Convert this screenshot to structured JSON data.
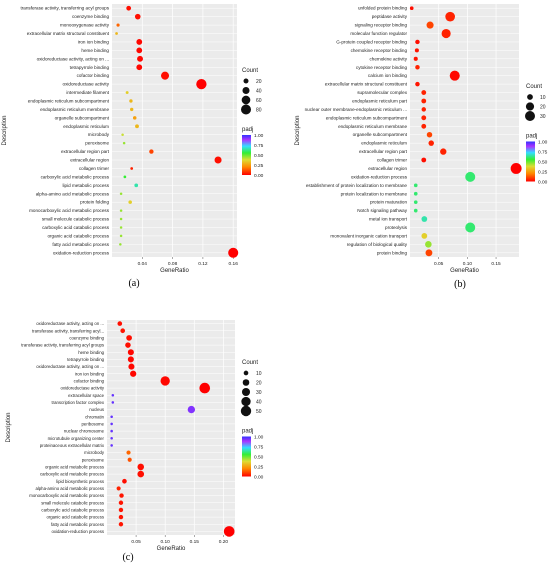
{
  "chart_data": [
    {
      "type": "scatter",
      "panel_label": "(a)",
      "xlabel": "GeneRatio",
      "ylabel": "Description",
      "xlim": [
        0.0,
        0.165
      ],
      "xticks": [
        0.04,
        0.08,
        0.12,
        0.16
      ],
      "grid": true,
      "legend_position": "right",
      "size_legend": {
        "title": "Count",
        "values": [
          20,
          40,
          60,
          80
        ]
      },
      "color_legend": {
        "title": "padj",
        "ticks": [
          "1.00",
          "0.75",
          "0.50",
          "0.25",
          "0.00"
        ]
      },
      "categories": [
        "transferase activity, transferring acyl groups",
        "coenzyme binding",
        "monooxygenase activity",
        "extracellular matrix structural constituent",
        "iron ion binding",
        "heme binding",
        "oxidoreductase activity, acting on ...",
        "tetrapyrrole binding",
        "cofactor binding",
        "oxidoreductase activity",
        "intermediate filament",
        "endoplasmic reticulum subcompartment",
        "endoplasmic reticulum membrane",
        "organelle subcompartment",
        "endoplasmic reticulum",
        "microbody",
        "peroxisome",
        "extracellular region part",
        "extracellular region",
        "collagen trimer",
        "carboxylic acid metabolic process",
        "lipid metabolic process",
        "alpha-amino acid metabolic process",
        "protein folding",
        "monocarboxylic acid metabolic process",
        "small molecule catabolic process",
        "carboxylic acid catabolic process",
        "organic acid catabolic process",
        "fatty acid metabolic process",
        "oxidation-reduction process"
      ],
      "points": [
        {
          "x": 0.022,
          "count": 18,
          "padj": 0.02
        },
        {
          "x": 0.034,
          "count": 25,
          "padj": 0.02
        },
        {
          "x": 0.008,
          "count": 8,
          "padj": 0.15
        },
        {
          "x": 0.006,
          "count": 6,
          "padj": 0.3
        },
        {
          "x": 0.036,
          "count": 27,
          "padj": 0.01
        },
        {
          "x": 0.036,
          "count": 27,
          "padj": 0.01
        },
        {
          "x": 0.037,
          "count": 28,
          "padj": 0.01
        },
        {
          "x": 0.036,
          "count": 27,
          "padj": 0.01
        },
        {
          "x": 0.07,
          "count": 52,
          "padj": 0.02
        },
        {
          "x": 0.118,
          "count": 85,
          "padj": 0.0
        },
        {
          "x": 0.02,
          "count": 7,
          "padj": 0.35
        },
        {
          "x": 0.025,
          "count": 9,
          "padj": 0.3
        },
        {
          "x": 0.026,
          "count": 9,
          "padj": 0.3
        },
        {
          "x": 0.03,
          "count": 10,
          "padj": 0.25
        },
        {
          "x": 0.033,
          "count": 12,
          "padj": 0.3
        },
        {
          "x": 0.014,
          "count": 5,
          "padj": 0.4
        },
        {
          "x": 0.016,
          "count": 5,
          "padj": 0.45
        },
        {
          "x": 0.052,
          "count": 15,
          "padj": 0.1
        },
        {
          "x": 0.14,
          "count": 40,
          "padj": 0.02
        },
        {
          "x": 0.026,
          "count": 6,
          "padj": 0.05
        },
        {
          "x": 0.017,
          "count": 6,
          "padj": 0.55
        },
        {
          "x": 0.032,
          "count": 11,
          "padj": 0.65
        },
        {
          "x": 0.012,
          "count": 5,
          "padj": 0.45
        },
        {
          "x": 0.024,
          "count": 10,
          "padj": 0.35
        },
        {
          "x": 0.012,
          "count": 5,
          "padj": 0.45
        },
        {
          "x": 0.012,
          "count": 5,
          "padj": 0.45
        },
        {
          "x": 0.012,
          "count": 5,
          "padj": 0.45
        },
        {
          "x": 0.012,
          "count": 5,
          "padj": 0.45
        },
        {
          "x": 0.011,
          "count": 5,
          "padj": 0.45
        },
        {
          "x": 0.16,
          "count": 80,
          "padj": 0.0
        }
      ]
    },
    {
      "type": "scatter",
      "panel_label": "(b)",
      "xlabel": "GeneRatio",
      "ylabel": "Description",
      "xlim": [
        0.0,
        0.19
      ],
      "xticks": [
        0.05,
        0.1,
        0.15
      ],
      "grid": true,
      "legend_position": "right",
      "size_legend": {
        "title": "Count",
        "values": [
          10,
          20,
          30
        ]
      },
      "color_legend": {
        "title": "padj",
        "ticks": [
          "1.00",
          "0.75",
          "0.50",
          "0.25",
          "0.00"
        ]
      },
      "categories": [
        "unfolded protein binding",
        "peptidase activity",
        "signaling receptor binding",
        "molecular function regulator",
        "G-protein coupled receptor binding",
        "chemokine receptor binding",
        "chemokine activity",
        "cytokine receptor binding",
        "calcium ion binding",
        "extracellular matrix structural constituent",
        "supramolecular complex",
        "endoplasmic reticulum part",
        "nuclear outer membrane-endoplasmic reticulum ...",
        "endoplasmic reticulum subcompartment",
        "endoplasmic reticulum membrane",
        "organelle subcompartment",
        "endoplasmic reticulum",
        "extracellular region part",
        "collagen trimer",
        "extracellular region",
        "oxidation-reduction process",
        "establishment of protein localization to membrane",
        "protein localization to membrane",
        "protein maturation",
        "Notch signaling pathway",
        "metal ion transport",
        "proteolysis",
        "monovalent inorganic cation transport",
        "regulation of biological quality",
        "protein binding"
      ],
      "points": [
        {
          "x": 0.003,
          "count": 4,
          "padj": 0.02
        },
        {
          "x": 0.07,
          "count": 28,
          "padj": 0.05
        },
        {
          "x": 0.035,
          "count": 15,
          "padj": 0.1
        },
        {
          "x": 0.063,
          "count": 25,
          "padj": 0.05
        },
        {
          "x": 0.013,
          "count": 6,
          "padj": 0.02
        },
        {
          "x": 0.012,
          "count": 5,
          "padj": 0.03
        },
        {
          "x": 0.01,
          "count": 5,
          "padj": 0.03
        },
        {
          "x": 0.013,
          "count": 6,
          "padj": 0.05
        },
        {
          "x": 0.078,
          "count": 30,
          "padj": 0.01
        },
        {
          "x": 0.013,
          "count": 6,
          "padj": 0.03
        },
        {
          "x": 0.024,
          "count": 7,
          "padj": 0.05
        },
        {
          "x": 0.024,
          "count": 7,
          "padj": 0.05
        },
        {
          "x": 0.024,
          "count": 6,
          "padj": 0.05
        },
        {
          "x": 0.024,
          "count": 7,
          "padj": 0.05
        },
        {
          "x": 0.024,
          "count": 7,
          "padj": 0.05
        },
        {
          "x": 0.034,
          "count": 9,
          "padj": 0.1
        },
        {
          "x": 0.037,
          "count": 9,
          "padj": 0.05
        },
        {
          "x": 0.058,
          "count": 12,
          "padj": 0.05
        },
        {
          "x": 0.024,
          "count": 7,
          "padj": 0.02
        },
        {
          "x": 0.185,
          "count": 36,
          "padj": 0.0
        },
        {
          "x": 0.105,
          "count": 30,
          "padj": 0.6
        },
        {
          "x": 0.01,
          "count": 4,
          "padj": 0.6
        },
        {
          "x": 0.01,
          "count": 4,
          "padj": 0.6
        },
        {
          "x": 0.01,
          "count": 4,
          "padj": 0.6
        },
        {
          "x": 0.01,
          "count": 4,
          "padj": 0.6
        },
        {
          "x": 0.025,
          "count": 10,
          "padj": 0.65
        },
        {
          "x": 0.105,
          "count": 30,
          "padj": 0.6
        },
        {
          "x": 0.025,
          "count": 10,
          "padj": 0.35
        },
        {
          "x": 0.032,
          "count": 13,
          "padj": 0.45
        },
        {
          "x": 0.033,
          "count": 14,
          "padj": 0.1
        }
      ]
    },
    {
      "type": "scatter",
      "panel_label": "(c)",
      "xlabel": "GeneRatio",
      "ylabel": "Description",
      "xlim": [
        0.0,
        0.22
      ],
      "xticks": [
        0.05,
        0.1,
        0.15,
        0.2
      ],
      "grid": true,
      "legend_position": "right",
      "size_legend": {
        "title": "Count",
        "values": [
          10,
          20,
          30,
          40,
          50
        ]
      },
      "color_legend": {
        "title": "padj",
        "ticks": [
          "1.00",
          "0.75",
          "0.50",
          "0.25",
          "0.00"
        ]
      },
      "categories": [
        "oxidoreductase activity, acting on ...",
        "transferase activity, transferring acyl...",
        "coenzyme binding",
        "transferase activity, transferring acyl groups",
        "heme binding",
        "tetrapyrrole binding",
        "oxidoreductase activity, acting on ...",
        "iron ion binding",
        "cofactor binding",
        "oxidoreductase activity",
        "extracellular space",
        "transcription factor complex",
        "nucleus",
        "chromatin",
        "peribosome",
        "nuclear chromosome",
        "microtubule organizing center",
        "proteinaceous extracellular matrix",
        "microbody",
        "peroxisome",
        "organic acid metabolic process",
        "carboxylic acid metabolic process",
        "lipid biosynthetic process",
        "alpha-amino acid metabolic process",
        "monocarboxylic acid metabolic process",
        "small molecule catabolic process",
        "carboxylic acid catabolic process",
        "organic acid catabolic process",
        "fatty acid metabolic process",
        "oxidation-reduction process"
      ],
      "points": [
        {
          "x": 0.022,
          "count": 10,
          "padj": 0.02
        },
        {
          "x": 0.027,
          "count": 10,
          "padj": 0.03
        },
        {
          "x": 0.038,
          "count": 15,
          "padj": 0.02
        },
        {
          "x": 0.036,
          "count": 14,
          "padj": 0.02
        },
        {
          "x": 0.041,
          "count": 17,
          "padj": 0.01
        },
        {
          "x": 0.041,
          "count": 17,
          "padj": 0.01
        },
        {
          "x": 0.042,
          "count": 17,
          "padj": 0.01
        },
        {
          "x": 0.045,
          "count": 18,
          "padj": 0.01
        },
        {
          "x": 0.1,
          "count": 40,
          "padj": 0.01
        },
        {
          "x": 0.168,
          "count": 52,
          "padj": 0.0
        },
        {
          "x": 0.01,
          "count": 3,
          "padj": 0.95
        },
        {
          "x": 0.01,
          "count": 3,
          "padj": 0.95
        },
        {
          "x": 0.145,
          "count": 25,
          "padj": 0.92
        },
        {
          "x": 0.008,
          "count": 3,
          "padj": 0.95
        },
        {
          "x": 0.008,
          "count": 3,
          "padj": 0.95
        },
        {
          "x": 0.008,
          "count": 3,
          "padj": 0.95
        },
        {
          "x": 0.008,
          "count": 3,
          "padj": 0.95
        },
        {
          "x": 0.008,
          "count": 3,
          "padj": 0.95
        },
        {
          "x": 0.037,
          "count": 8,
          "padj": 0.15
        },
        {
          "x": 0.039,
          "count": 8,
          "padj": 0.12
        },
        {
          "x": 0.058,
          "count": 20,
          "padj": 0.02
        },
        {
          "x": 0.058,
          "count": 20,
          "padj": 0.02
        },
        {
          "x": 0.03,
          "count": 10,
          "padj": 0.02
        },
        {
          "x": 0.02,
          "count": 8,
          "padj": 0.05
        },
        {
          "x": 0.025,
          "count": 9,
          "padj": 0.03
        },
        {
          "x": 0.024,
          "count": 9,
          "padj": 0.03
        },
        {
          "x": 0.024,
          "count": 9,
          "padj": 0.03
        },
        {
          "x": 0.024,
          "count": 9,
          "padj": 0.03
        },
        {
          "x": 0.024,
          "count": 9,
          "padj": 0.03
        },
        {
          "x": 0.21,
          "count": 52,
          "padj": 0.0
        }
      ]
    }
  ]
}
